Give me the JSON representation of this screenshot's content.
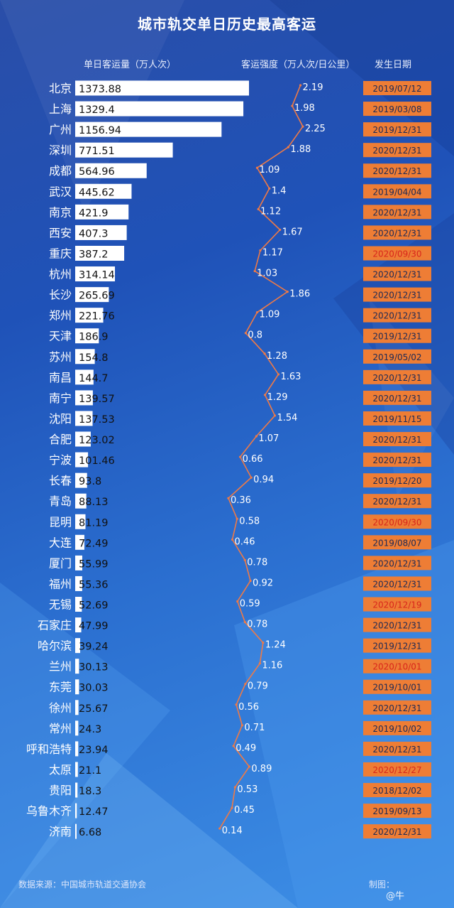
{
  "title": "城市轨交单日历史最高客运",
  "headers": {
    "volume": "单日客运量（万人次）",
    "intensity": "客运强度（万人次/日公里）",
    "date": "发生日期"
  },
  "footer": {
    "source": "数据来源：中国城市轨道交通协会",
    "credit": "制图：",
    "watermark": "@牛"
  },
  "colors": {
    "bar": "#ffffff",
    "line": "#f07a45",
    "date_box": "#ee7d35",
    "date_text_normal": "#1e2a55",
    "date_text_highlight": "#d8261c"
  },
  "chart_data": {
    "type": "bar",
    "cities": [
      "北京",
      "上海",
      "广州",
      "深圳",
      "成都",
      "武汉",
      "南京",
      "西安",
      "重庆",
      "杭州",
      "长沙",
      "郑州",
      "天津",
      "苏州",
      "南昌",
      "南宁",
      "沈阳",
      "合肥",
      "宁波",
      "长春",
      "青岛",
      "昆明",
      "大连",
      "厦门",
      "福州",
      "无锡",
      "石家庄",
      "哈尔滨",
      "兰州",
      "东莞",
      "徐州",
      "常州",
      "呼和浩特",
      "太原",
      "贵阳",
      "乌鲁木齐",
      "济南"
    ],
    "volume_labels": [
      "1373.88",
      "1329.4",
      "1156.94",
      "771.51",
      "564.96",
      "445.62",
      "421.9",
      "407.3",
      "387.2",
      "314.14",
      "265.69",
      "221.76",
      "186.9",
      "154.8",
      "144.7",
      "139.57",
      "137.53",
      "123.02",
      "101.46",
      "93.8",
      "88.13",
      "81.19",
      "72.49",
      "55.99",
      "55.36",
      "52.69",
      "47.99",
      "39.24",
      "30.13",
      "30.03",
      "25.67",
      "24.3",
      "23.94",
      "21.1",
      "18.3",
      "12.47",
      "6.68"
    ],
    "volume": [
      1373.88,
      1329.4,
      1156.94,
      771.51,
      564.96,
      445.62,
      421.9,
      407.3,
      387.2,
      314.14,
      265.69,
      221.76,
      186.9,
      154.8,
      144.7,
      139.57,
      137.53,
      123.02,
      101.46,
      93.8,
      88.13,
      81.19,
      72.49,
      55.99,
      55.36,
      52.69,
      47.99,
      39.24,
      30.13,
      30.03,
      25.67,
      24.3,
      23.94,
      21.1,
      18.3,
      12.47,
      6.68
    ],
    "intensity_labels": [
      "2.19",
      "1.98",
      "2.25",
      "1.88",
      "1.09",
      "1.4",
      "1.12",
      "1.67",
      "1.17",
      "1.03",
      "1.86",
      "1.09",
      "0.8",
      "1.28",
      "1.63",
      "1.29",
      "1.54",
      "1.07",
      "0.66",
      "0.94",
      "0.36",
      "0.58",
      "0.46",
      "0.78",
      "0.92",
      "0.59",
      "0.78",
      "1.24",
      "1.16",
      "0.79",
      "0.56",
      "0.71",
      "0.49",
      "0.89",
      "0.53",
      "0.45",
      "0.14"
    ],
    "intensity": [
      2.19,
      1.98,
      2.25,
      1.88,
      1.09,
      1.4,
      1.12,
      1.67,
      1.17,
      1.03,
      1.86,
      1.09,
      0.8,
      1.28,
      1.63,
      1.29,
      1.54,
      1.07,
      0.66,
      0.94,
      0.36,
      0.58,
      0.46,
      0.78,
      0.92,
      0.59,
      0.78,
      1.24,
      1.16,
      0.79,
      0.56,
      0.71,
      0.49,
      0.89,
      0.53,
      0.45,
      0.14
    ],
    "dates": [
      "2019/07/12",
      "2019/03/08",
      "2019/12/31",
      "2020/12/31",
      "2020/12/31",
      "2019/04/04",
      "2020/12/31",
      "2020/12/31",
      "2020/09/30",
      "2020/12/31",
      "2020/12/31",
      "2020/12/31",
      "2019/12/31",
      "2019/05/02",
      "2020/12/31",
      "2020/12/31",
      "2019/11/15",
      "2020/12/31",
      "2020/12/31",
      "2019/12/20",
      "2020/12/31",
      "2020/09/30",
      "2019/08/07",
      "2020/12/31",
      "2020/12/31",
      "2020/12/19",
      "2020/12/31",
      "2019/12/31",
      "2020/10/01",
      "2019/10/01",
      "2020/12/31",
      "2019/10/02",
      "2020/12/31",
      "2020/12/27",
      "2018/12/02",
      "2019/09/13",
      "2020/12/31"
    ],
    "date_highlight": [
      false,
      false,
      false,
      false,
      false,
      false,
      false,
      false,
      true,
      false,
      false,
      false,
      false,
      false,
      false,
      false,
      false,
      false,
      false,
      false,
      false,
      true,
      false,
      false,
      false,
      true,
      false,
      false,
      true,
      false,
      false,
      false,
      false,
      true,
      false,
      false,
      false
    ]
  }
}
